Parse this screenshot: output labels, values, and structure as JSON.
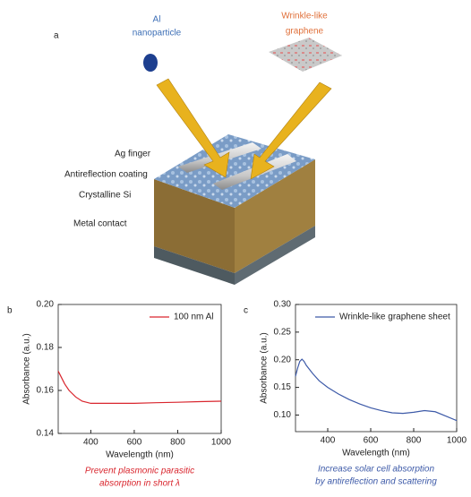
{
  "diagram": {
    "label": "a",
    "nanoparticle_label": [
      "Al",
      "nanoparticle"
    ],
    "graphene_label": [
      "Wrinkle-like",
      "graphene"
    ],
    "layers": [
      "Ag finger",
      "Antireflection coating",
      "Crystalline Si",
      "Metal contact"
    ]
  },
  "chart_data": [
    {
      "type": "line",
      "panel": "b",
      "xlabel": "Wavelength (nm)",
      "ylabel": "Absorbance (a.u.)",
      "x": [
        250,
        260,
        280,
        300,
        330,
        360,
        380,
        400,
        500,
        600,
        700,
        800,
        900,
        1000
      ],
      "series": [
        {
          "name": "100 nm Al",
          "color": "#d9262e",
          "values": [
            0.169,
            0.167,
            0.163,
            0.16,
            0.157,
            0.155,
            0.1545,
            0.154,
            0.154,
            0.154,
            0.1543,
            0.1545,
            0.1548,
            0.155
          ]
        }
      ],
      "xlim": [
        250,
        1000
      ],
      "xticks": [
        400,
        600,
        800,
        1000
      ],
      "ylim": [
        0.14,
        0.2
      ],
      "yticks": [
        0.14,
        0.16,
        0.18,
        {
          "value": 0.2,
          "label": "0.20"
        }
      ],
      "legend": "upper right",
      "caption": [
        "Prevent plasmonic parasitic",
        "absorption in short λ"
      ],
      "caption_color": "#d9262e"
    },
    {
      "type": "line",
      "panel": "c",
      "xlabel": "Wavelength (nm)",
      "ylabel": "Absorbance (a.u.)",
      "x": [
        250,
        260,
        270,
        280,
        290,
        300,
        330,
        360,
        400,
        450,
        500,
        550,
        600,
        650,
        700,
        750,
        800,
        850,
        900,
        950,
        1000
      ],
      "series": [
        {
          "name": "Wrinkle-like graphene sheet",
          "color": "#3d5aa8",
          "values": [
            0.17,
            0.185,
            0.197,
            0.201,
            0.197,
            0.19,
            0.175,
            0.162,
            0.15,
            0.138,
            0.128,
            0.12,
            0.113,
            0.108,
            0.104,
            0.103,
            0.105,
            0.108,
            0.106,
            0.098,
            0.09
          ]
        }
      ],
      "xlim": [
        250,
        1000
      ],
      "xticks": [
        400,
        600,
        800,
        1000
      ],
      "ylim": [
        0.07,
        0.3
      ],
      "yticks": [
        {
          "value": 0.1,
          "label": "0.10"
        },
        0.15,
        {
          "value": 0.2,
          "label": "0.20"
        },
        0.25,
        {
          "value": 0.3,
          "label": "0.30"
        }
      ],
      "legend": "upper left",
      "caption": [
        "Increase solar cell absorption",
        "by antireflection and scattering"
      ],
      "caption_color": "#3d5aa8"
    }
  ]
}
